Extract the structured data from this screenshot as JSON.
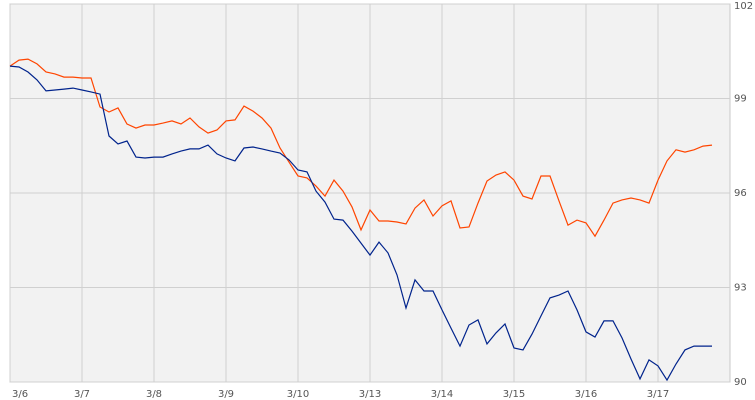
{
  "chart_data": {
    "type": "line",
    "categories": [
      "3/6",
      null,
      null,
      null,
      null,
      null,
      null,
      null,
      "3/7",
      null,
      null,
      null,
      null,
      null,
      null,
      null,
      "3/8",
      null,
      null,
      null,
      null,
      null,
      null,
      null,
      "3/9",
      null,
      null,
      null,
      null,
      null,
      null,
      null,
      "3/10",
      null,
      null,
      null,
      null,
      null,
      null,
      null,
      "3/13",
      null,
      null,
      null,
      null,
      null,
      null,
      null,
      "3/14",
      null,
      null,
      null,
      null,
      null,
      null,
      null,
      "3/15",
      null,
      null,
      null,
      null,
      null,
      null,
      null,
      "3/16",
      null,
      null,
      null,
      null,
      null,
      null,
      null,
      "3/17",
      null,
      null,
      null,
      null,
      null,
      null
    ],
    "series": [
      {
        "color": "#ff4500",
        "values": [
          100.03,
          100.22,
          100.25,
          100.1,
          99.84,
          99.78,
          99.68,
          99.68,
          99.65,
          99.65,
          98.73,
          98.57,
          98.7,
          98.19,
          98.06,
          98.16,
          98.16,
          98.22,
          98.29,
          98.19,
          98.38,
          98.1,
          97.9,
          98.0,
          98.29,
          98.32,
          98.76,
          98.6,
          98.38,
          98.06,
          97.43,
          96.98,
          96.54,
          96.48,
          96.22,
          95.9,
          96.41,
          96.06,
          95.56,
          94.83,
          95.46,
          95.11,
          95.11,
          95.08,
          95.02,
          95.52,
          95.78,
          95.27,
          95.59,
          95.75,
          94.89,
          94.92,
          95.68,
          96.38,
          96.57,
          96.67,
          96.41,
          95.9,
          95.81,
          96.54,
          96.54,
          95.75,
          94.98,
          95.14,
          95.05,
          94.63,
          95.14,
          95.68,
          95.78,
          95.84,
          95.78,
          95.68,
          96.41,
          97.02,
          97.37,
          97.3,
          97.37,
          97.49,
          97.52
        ]
      },
      {
        "color": "#00238c",
        "values": [
          100.03,
          100.0,
          99.84,
          99.59,
          99.24,
          99.27,
          99.3,
          99.33,
          99.27,
          99.21,
          99.14,
          97.81,
          97.56,
          97.65,
          97.14,
          97.11,
          97.14,
          97.14,
          97.24,
          97.33,
          97.4,
          97.4,
          97.52,
          97.24,
          97.11,
          97.02,
          97.43,
          97.46,
          97.4,
          97.33,
          97.27,
          97.05,
          96.73,
          96.67,
          96.06,
          95.71,
          95.17,
          95.14,
          94.79,
          94.41,
          94.03,
          94.44,
          94.1,
          93.4,
          92.35,
          93.24,
          92.89,
          92.89,
          92.29,
          91.71,
          91.14,
          91.81,
          91.97,
          91.21,
          91.56,
          91.84,
          91.08,
          91.02,
          91.52,
          92.1,
          92.67,
          92.76,
          92.89,
          92.29,
          91.59,
          91.43,
          91.94,
          91.94,
          91.4,
          90.73,
          90.1,
          90.7,
          90.51,
          90.06,
          90.57,
          91.02,
          91.14,
          91.14,
          91.14
        ]
      }
    ],
    "ylim": [
      90,
      102
    ],
    "yticks": [
      90,
      93,
      96,
      99,
      102
    ],
    "grid": true
  }
}
